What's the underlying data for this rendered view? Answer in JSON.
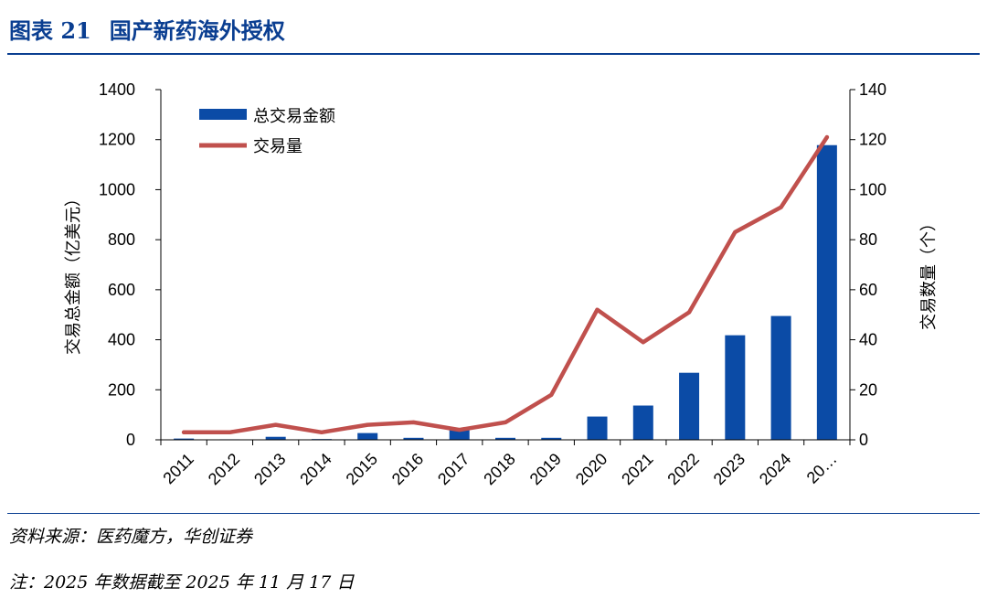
{
  "header": {
    "fig_no": "图表 21",
    "title": "国产新药海外授权"
  },
  "footer": {
    "source": "资料来源：医药魔方，华创证券",
    "note": "注：2025 年数据截至 2025 年 11 月 17 日"
  },
  "colors": {
    "bar": "#0b4ba6",
    "line": "#c0504d",
    "title": "#0a3e91"
  },
  "chart_data": {
    "type": "bar+line",
    "categories": [
      "2011",
      "2012",
      "2013",
      "2014",
      "2015",
      "2016",
      "2017",
      "2018",
      "2019",
      "2020",
      "2021",
      "2022",
      "2023",
      "2024",
      "20…"
    ],
    "series": [
      {
        "name": "总交易金额",
        "type": "bar",
        "axis": "left",
        "values": [
          5,
          2,
          12,
          3,
          27,
          8,
          42,
          8,
          8,
          93,
          137,
          268,
          418,
          495,
          1178
        ]
      },
      {
        "name": "交易量",
        "type": "line",
        "axis": "right",
        "values": [
          3,
          3,
          6,
          3,
          6,
          7,
          4,
          7,
          18,
          52,
          39,
          51,
          83,
          93,
          121
        ]
      }
    ],
    "y_left": {
      "label": "交易总金额（亿美元）",
      "min": 0,
      "max": 1400,
      "ticks": [
        0,
        200,
        400,
        600,
        800,
        1000,
        1200,
        1400
      ]
    },
    "y_right": {
      "label": "交易数量（个）",
      "min": 0,
      "max": 140,
      "ticks": [
        0,
        20,
        40,
        60,
        80,
        100,
        120,
        140
      ]
    },
    "legend_position": "top-left"
  }
}
